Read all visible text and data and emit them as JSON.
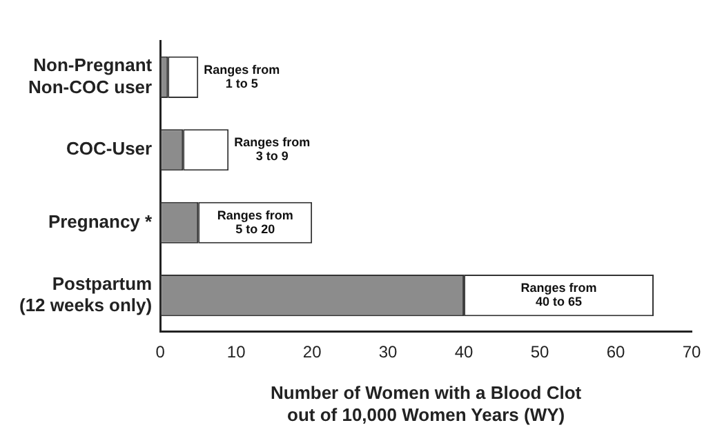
{
  "chart_data": {
    "type": "bar",
    "orientation": "horizontal",
    "stacked": true,
    "categories": [
      "Non-Pregnant\nNon-COC user",
      "COC-User",
      "Pregnancy *",
      "Postpartum\n(12 weeks only)"
    ],
    "series": [
      {
        "color": "#8c8c8c",
        "values": [
          1,
          3,
          5,
          40
        ]
      },
      {
        "color": "#ffffff",
        "values": [
          4,
          6,
          15,
          25
        ],
        "value_labels": [
          "Ranges from\n1 to 5",
          "Ranges from\n3 to 9",
          "Ranges from\n5 to 20",
          "Ranges from\n40 to 65"
        ]
      }
    ],
    "xlabel": "Number of Women with a Blood Clot\nout of 10,000 Women Years (WY)",
    "xlim": [
      0,
      70
    ],
    "xticks": [
      0,
      10,
      20,
      30,
      40,
      50,
      60,
      70
    ],
    "grid": false,
    "legend": false
  }
}
